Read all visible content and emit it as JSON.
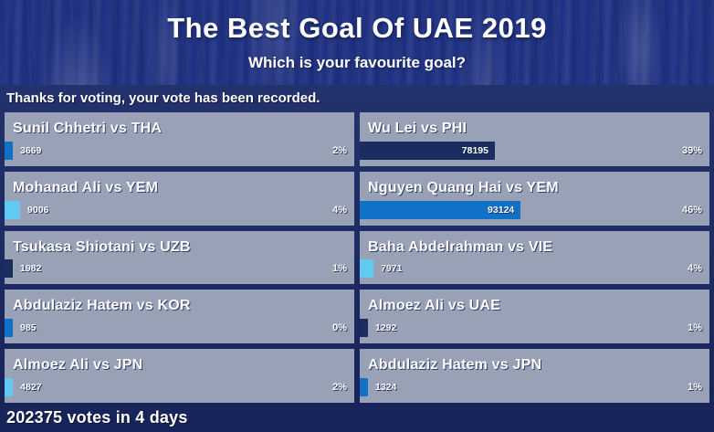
{
  "header": {
    "title": "The Best Goal Of UAE 2019",
    "subtitle": "Which is your favourite goal?"
  },
  "status_message": "Thanks for voting, your vote has been recorded.",
  "poll": {
    "options": [
      {
        "label": "Sunil Chhetri vs THA",
        "votes": "3669",
        "percent_label": "2%",
        "bar_percent": 1.81,
        "bar_color": "#0f72c6"
      },
      {
        "label": "Mohanad Ali vs YEM",
        "votes": "9006",
        "percent_label": "4%",
        "bar_percent": 4.45,
        "bar_color": "#62c9f2"
      },
      {
        "label": "Tsukasa Shiotani vs UZB",
        "votes": "1982",
        "percent_label": "1%",
        "bar_percent": 0.98,
        "bar_color": "#1b2d5e"
      },
      {
        "label": "Abdulaziz Hatem vs KOR",
        "votes": "985",
        "percent_label": "0%",
        "bar_percent": 0.49,
        "bar_color": "#0f72c6"
      },
      {
        "label": "Almoez Ali vs JPN",
        "votes": "4827",
        "percent_label": "2%",
        "bar_percent": 2.39,
        "bar_color": "#62c9f2"
      },
      {
        "label": "Wu Lei vs PHI",
        "votes": "78195",
        "percent_label": "39%",
        "bar_percent": 38.64,
        "bar_color": "#1b2d5e"
      },
      {
        "label": "Nguyen Quang Hai vs YEM",
        "votes": "93124",
        "percent_label": "46%",
        "bar_percent": 46.02,
        "bar_color": "#0f72c6"
      },
      {
        "label": "Baha Abdelrahman vs VIE",
        "votes": "7971",
        "percent_label": "4%",
        "bar_percent": 3.94,
        "bar_color": "#62c9f2"
      },
      {
        "label": "Almoez Ali vs UAE",
        "votes": "1292",
        "percent_label": "1%",
        "bar_percent": 0.64,
        "bar_color": "#1b2d5e"
      },
      {
        "label": "Abdulaziz Hatem vs JPN",
        "votes": "1324",
        "percent_label": "1%",
        "bar_percent": 0.65,
        "bar_color": "#0f72c6"
      }
    ],
    "footer": "202375 votes in 4 days"
  },
  "colors": {
    "background": "#1e3082",
    "poll_background": "#1c2b68",
    "cell_background": "#99a1b6",
    "bar_blue": "#0f72c6",
    "bar_navy": "#1b2d5e",
    "bar_cyan": "#62c9f2",
    "text": "#ffffff"
  }
}
